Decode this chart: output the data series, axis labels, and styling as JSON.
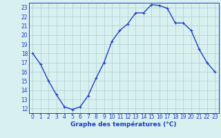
{
  "hours": [
    0,
    1,
    2,
    3,
    4,
    5,
    6,
    7,
    8,
    9,
    10,
    11,
    12,
    13,
    14,
    15,
    16,
    17,
    18,
    19,
    20,
    21,
    22,
    23
  ],
  "temps": [
    18,
    16.8,
    15.0,
    13.5,
    12.2,
    11.9,
    12.2,
    13.4,
    15.3,
    17.0,
    19.3,
    20.5,
    21.2,
    22.4,
    22.4,
    23.3,
    23.2,
    22.9,
    21.3,
    21.3,
    20.5,
    18.5,
    17.0,
    16.0
  ],
  "line_color": "#1e3cbe",
  "marker_color": "#1e3cbe",
  "bg_color": "#d8f0f0",
  "grid_color": "#aad0d0",
  "axis_color": "#1e3cbe",
  "xlabel": "Graphe des températures (°C)",
  "ylim": [
    11.5,
    23.5
  ],
  "xlim": [
    -0.5,
    23.5
  ],
  "yticks": [
    12,
    13,
    14,
    15,
    16,
    17,
    18,
    19,
    20,
    21,
    22,
    23
  ],
  "xticks": [
    0,
    1,
    2,
    3,
    4,
    5,
    6,
    7,
    8,
    9,
    10,
    11,
    12,
    13,
    14,
    15,
    16,
    17,
    18,
    19,
    20,
    21,
    22,
    23
  ],
  "xlabel_fontsize": 6.5,
  "tick_fontsize": 5.5,
  "line_width": 1.0,
  "marker_size": 3.5
}
